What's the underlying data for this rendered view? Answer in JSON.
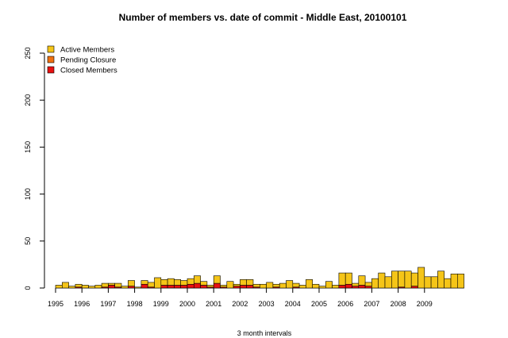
{
  "chart_data": {
    "type": "bar",
    "stacked": true,
    "title": "Number of members vs. date of commit - Middle East,  20100101",
    "xlabel": "3 month intervals",
    "ylabel": "",
    "ylim": [
      0,
      250
    ],
    "yticks": [
      0,
      50,
      100,
      150,
      200,
      250
    ],
    "year_labels": [
      "1995",
      "1996",
      "1997",
      "1998",
      "1999",
      "2000",
      "2001",
      "2002",
      "2003",
      "2004",
      "2005",
      "2006",
      "2007",
      "2008",
      "2009"
    ],
    "legend_position": "top-left",
    "series": [
      {
        "name": "Active Members",
        "color": "#f5c518",
        "values": [
          3,
          6,
          2,
          3,
          3,
          2,
          3,
          4,
          2,
          4,
          2,
          6,
          1,
          4,
          5,
          11,
          6,
          7,
          6,
          5,
          6,
          8,
          4,
          2,
          8,
          2,
          7,
          2,
          6,
          6,
          3,
          4,
          6,
          3,
          5,
          8,
          4,
          3,
          9,
          4,
          2,
          7,
          3,
          13,
          12,
          3,
          10,
          4,
          10,
          16,
          12,
          18,
          17,
          18,
          14,
          22,
          12,
          12,
          18,
          10,
          15,
          15
        ]
      },
      {
        "name": "Pending Closure",
        "color": "#f07010",
        "values": [
          0,
          0,
          0,
          0,
          0,
          0,
          0,
          0,
          0,
          0,
          0,
          0,
          0,
          0,
          0,
          0,
          0,
          0,
          0,
          0,
          0,
          0,
          0,
          0,
          0,
          0,
          0,
          0,
          0,
          0,
          0,
          0,
          0,
          0,
          0,
          0,
          0,
          0,
          0,
          0,
          0,
          0,
          0,
          0,
          0,
          0,
          0,
          0,
          0,
          0,
          0,
          0,
          0,
          0,
          0,
          0,
          0,
          0,
          0,
          0,
          0,
          0
        ]
      },
      {
        "name": "Closed Members",
        "color": "#e81010",
        "values": [
          0,
          0,
          0,
          1,
          0,
          0,
          0,
          1,
          3,
          1,
          0,
          2,
          0,
          4,
          1,
          0,
          3,
          3,
          3,
          3,
          4,
          5,
          3,
          1,
          5,
          1,
          0,
          2,
          3,
          3,
          1,
          0,
          0,
          1,
          0,
          0,
          1,
          0,
          0,
          0,
          0,
          0,
          0,
          3,
          4,
          2,
          3,
          2,
          0,
          0,
          0,
          0,
          1,
          0,
          2,
          0,
          0,
          0,
          0,
          0,
          0,
          0
        ]
      }
    ]
  }
}
